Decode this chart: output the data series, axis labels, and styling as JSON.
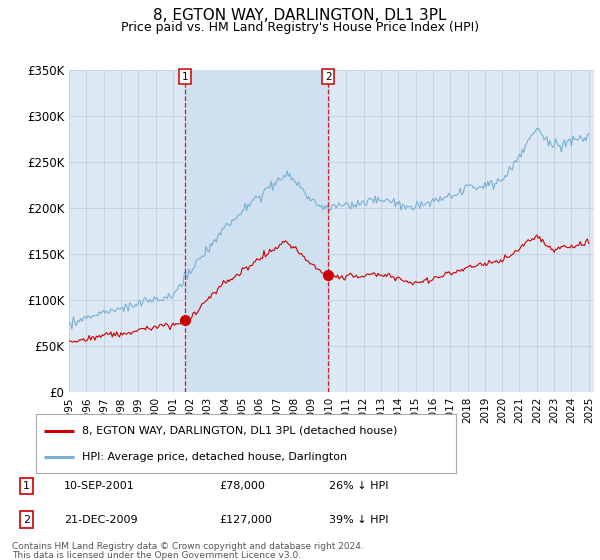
{
  "title": "8, EGTON WAY, DARLINGTON, DL1 3PL",
  "subtitle": "Price paid vs. HM Land Registry's House Price Index (HPI)",
  "title_fontsize": 11,
  "subtitle_fontsize": 9,
  "background_color": "#ffffff",
  "plot_bg_color": "#dde8f5",
  "ylim": [
    0,
    350000
  ],
  "yticks": [
    0,
    50000,
    100000,
    150000,
    200000,
    250000,
    300000,
    350000
  ],
  "ytick_labels": [
    "£0",
    "£50K",
    "£100K",
    "£150K",
    "£200K",
    "£250K",
    "£300K",
    "£350K"
  ],
  "transaction1": {
    "date_label": "10-SEP-2001",
    "year": 2001.7,
    "price": 78000,
    "label": "1",
    "pct": "26% ↓ HPI"
  },
  "transaction2": {
    "date_label": "21-DEC-2009",
    "year": 2009.97,
    "price": 127000,
    "label": "2",
    "pct": "39% ↓ HPI"
  },
  "legend_entries": [
    {
      "label": "8, EGTON WAY, DARLINGTON, DL1 3PL (detached house)",
      "color": "#cc0000"
    },
    {
      "label": "HPI: Average price, detached house, Darlington",
      "color": "#7ab0d4"
    }
  ],
  "footer1": "Contains HM Land Registry data © Crown copyright and database right 2024.",
  "footer2": "This data is licensed under the Open Government Licence v3.0.",
  "grid_color": "#bbccdd",
  "red_line_color": "#cc0000",
  "blue_line_color": "#7ab0d4",
  "shade_color": "#cfe0f0"
}
